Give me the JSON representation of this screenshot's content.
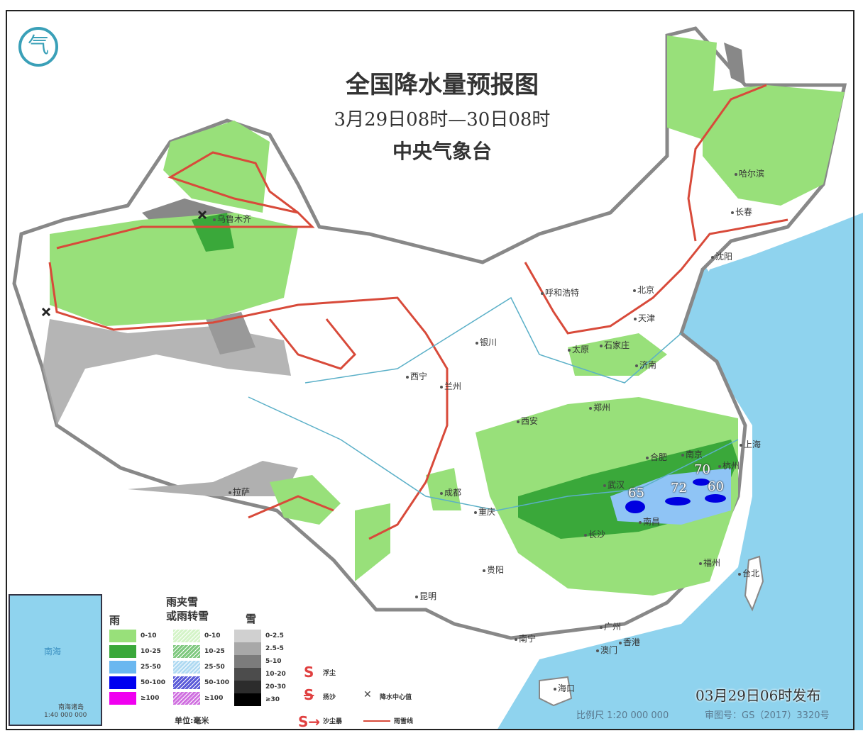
{
  "header": {
    "title": "全国降水量预报图",
    "period": "3月29日08时—30日08时",
    "issuer": "中央气象台"
  },
  "logo": {
    "icon": "cma-logo",
    "text": "气"
  },
  "precip_centers": [
    {
      "value": "65",
      "city_near": "南昌"
    },
    {
      "value": "72"
    },
    {
      "value": "70"
    },
    {
      "value": "60"
    }
  ],
  "cities": [
    "乌鲁木齐",
    "拉萨",
    "西宁",
    "兰州",
    "银川",
    "呼和浩特",
    "北京",
    "天津",
    "石家庄",
    "太原",
    "济南",
    "郑州",
    "西安",
    "成都",
    "重庆",
    "贵阳",
    "昆明",
    "南宁",
    "广州",
    "香港",
    "澳门",
    "海口",
    "长沙",
    "武汉",
    "南昌",
    "合肥",
    "南京",
    "杭州",
    "上海",
    "福州",
    "台北",
    "沈阳",
    "长春",
    "哈尔滨"
  ],
  "colors": {
    "rain_0_10": "#98e07a",
    "rain_10_25": "#3aa83a",
    "rain_25_50": "#6ab7f0",
    "rain_50_100": "#0000f0",
    "rain_100": "#f000f0",
    "sea": "#8fd3ee",
    "snow_line": "#d84a3a"
  },
  "legend": {
    "rain": {
      "title": "雨",
      "items": [
        "0-10",
        "10-25",
        "25-50",
        "50-100",
        "≥100"
      ]
    },
    "sleet": {
      "title_line1": "雨夹雪",
      "title_line2": "或雨转雪",
      "items": [
        "0-10",
        "10-25",
        "25-50",
        "50-100",
        "≥100"
      ]
    },
    "snow": {
      "title": "雪",
      "items": [
        "0-2.5",
        "2.5-5",
        "5-10",
        "10-20",
        "20-30",
        "≥30"
      ]
    },
    "symbols": {
      "floating_dust": "浮尘",
      "blowing_sand": "扬沙",
      "sandstorm": "沙尘暴",
      "precip_center": "降水中心值",
      "snow_line": "雨雪线"
    },
    "unit": "单位:毫米"
  },
  "inset": {
    "sea": "南海",
    "title": "南海诸岛",
    "scale": "1:40 000 000"
  },
  "footer": {
    "issued": "03月29日06时发布",
    "scale": "比例尺 1:20 000 000",
    "review": "审图号：GS（2017）3320号"
  }
}
